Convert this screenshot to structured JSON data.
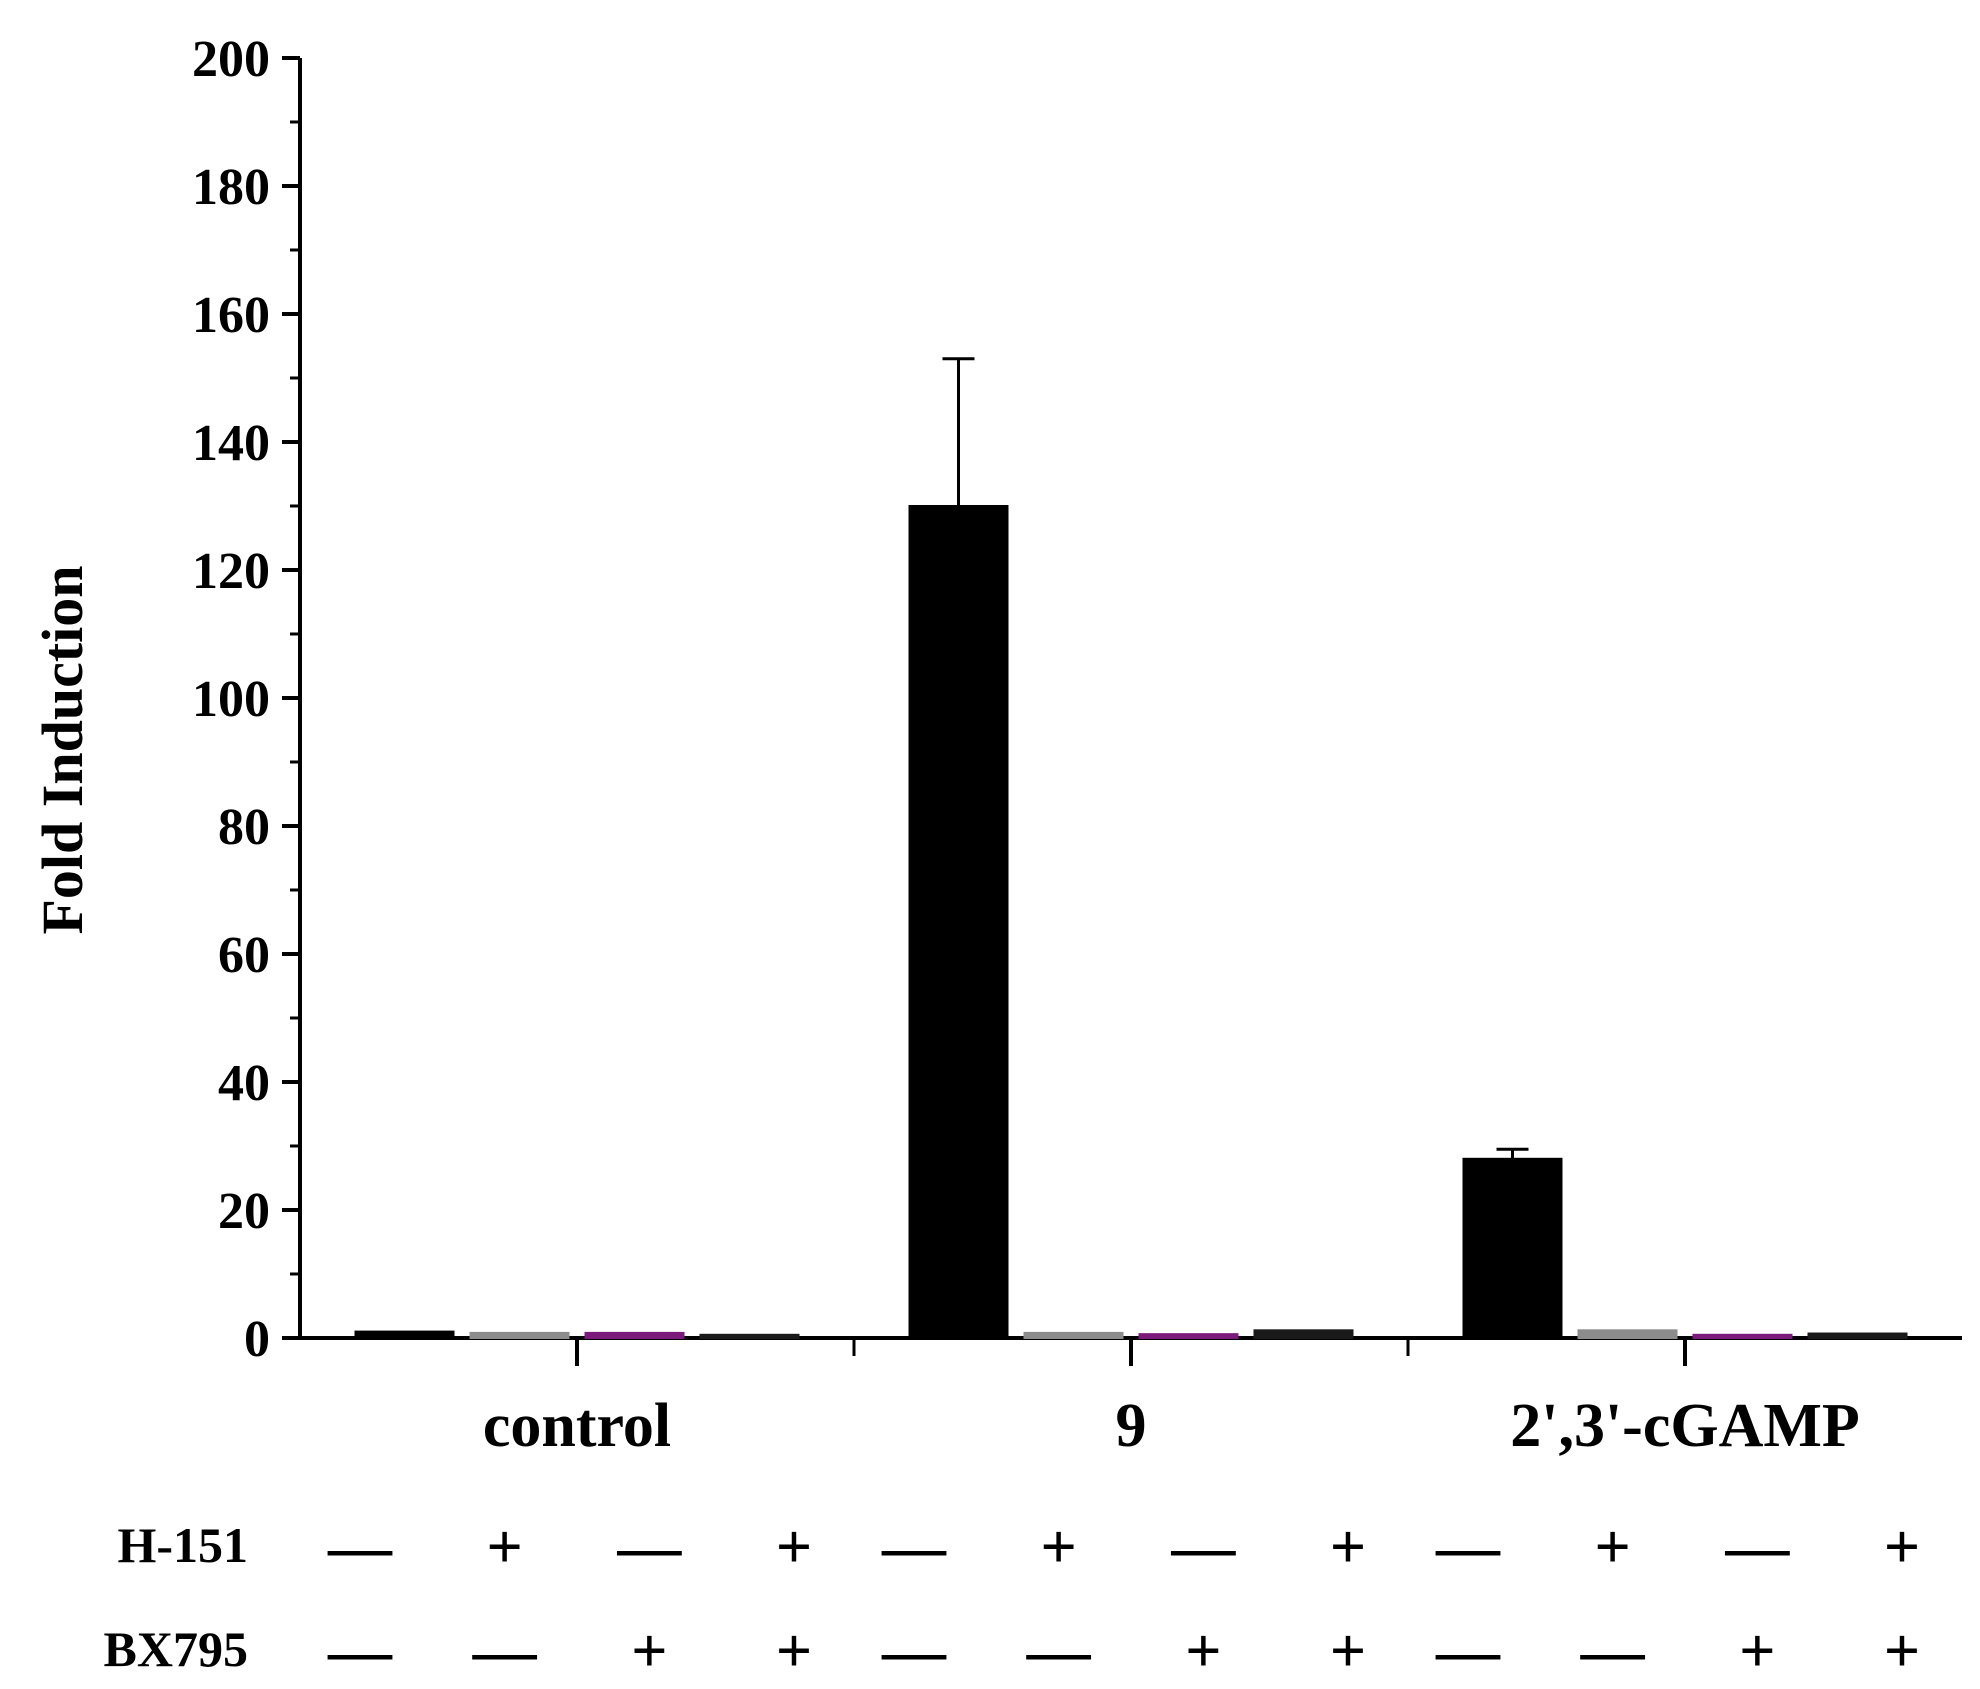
{
  "chart_data": {
    "type": "bar",
    "title": "",
    "xlabel": "",
    "ylabel": "Fold Induction",
    "ylim": [
      0,
      200
    ],
    "yticks": [
      "0",
      "20",
      "40",
      "60",
      "80",
      "100",
      "120",
      "140",
      "160",
      "180",
      "200"
    ],
    "groups": [
      "control",
      "9",
      "2',3'-cGAMP"
    ],
    "conditions": [
      {
        "H-151": "—",
        "BX795": "—"
      },
      {
        "H-151": "+",
        "BX795": "—"
      },
      {
        "H-151": "—",
        "BX795": "+"
      },
      {
        "H-151": "+",
        "BX795": "+"
      }
    ],
    "condition_row_labels": [
      "H-151",
      "BX795"
    ],
    "series_colors": [
      "#000000",
      "#8c8c8c",
      "#7a1a7a",
      "#1a1a1a"
    ],
    "values": [
      [
        1.0,
        0.8,
        0.8,
        0.5
      ],
      [
        130.0,
        0.8,
        0.6,
        1.2
      ],
      [
        28.0,
        1.2,
        0.5,
        0.7
      ]
    ],
    "errors": [
      [
        0,
        0,
        0,
        0
      ],
      [
        23.0,
        0,
        0,
        0
      ],
      [
        1.5,
        0,
        0,
        0
      ]
    ],
    "grid": false
  }
}
